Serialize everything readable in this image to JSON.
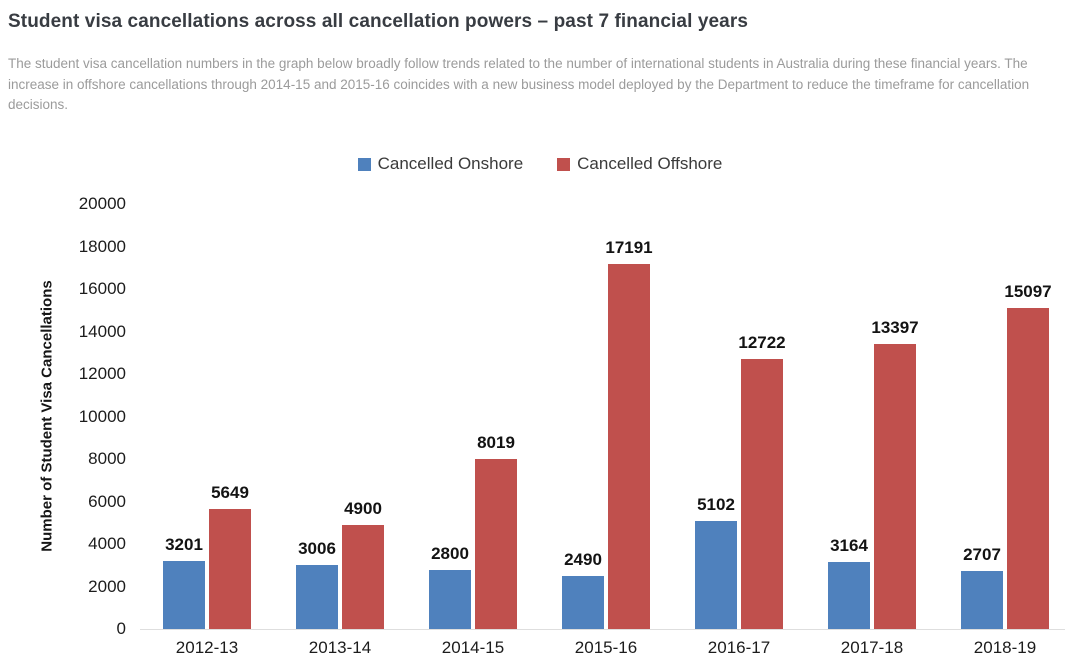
{
  "page": {
    "title": "Student visa cancellations across all cancellation powers – past 7 financial years",
    "description": "The student visa cancellation numbers in the graph below broadly follow trends related to the number of international students in Australia during these financial years. The increase in offshore cancellations through 2014-15 and 2015-16 coincides with a new business model deployed by the Department to reduce the timeframe for cancellation decisions."
  },
  "chart_data": {
    "type": "bar",
    "title": "",
    "xlabel": "",
    "ylabel": "Number of Student Visa Cancellations",
    "categories": [
      "2012-13",
      "2013-14",
      "2014-15",
      "2015-16",
      "2016-17",
      "2017-18",
      "2018-19"
    ],
    "series": [
      {
        "name": "Cancelled Onshore",
        "color": "#4F81BD",
        "values": [
          3201,
          3006,
          2800,
          2490,
          5102,
          3164,
          2707
        ]
      },
      {
        "name": "Cancelled Offshore",
        "color": "#C0504D",
        "values": [
          5649,
          4900,
          8019,
          17191,
          12722,
          13397,
          15097
        ]
      }
    ],
    "ylim": [
      0,
      20000
    ],
    "ytick_step": 2000,
    "grid": false,
    "legend_position": "top",
    "value_labels": true
  }
}
